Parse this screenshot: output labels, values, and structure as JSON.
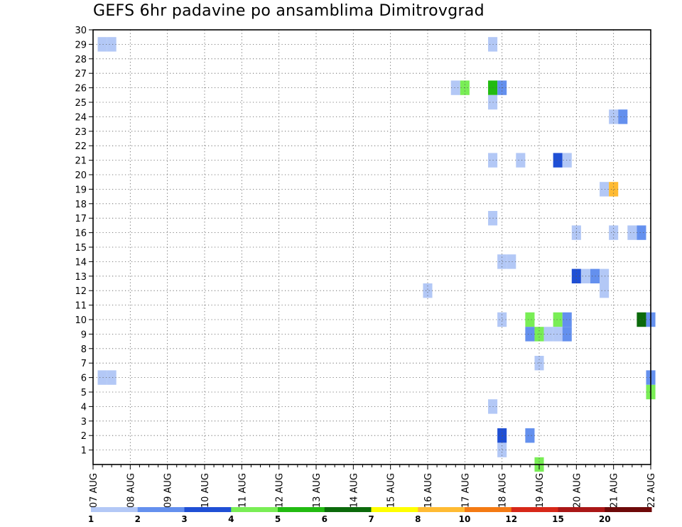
{
  "chart_data": {
    "type": "heatmap",
    "title": "GEFS 6hr padavine po ansamblima Dimitrovgrad",
    "xlabel": "",
    "ylabel": "",
    "x_ticks": [
      "07 AUG",
      "08 AUG",
      "09 AUG",
      "10 AUG",
      "11 AUG",
      "12 AUG",
      "13 AUG",
      "14 AUG",
      "15 AUG",
      "16 AUG",
      "17 AUG",
      "18 AUG",
      "19 AUG",
      "20 AUG",
      "21 AUG",
      "22 AUG"
    ],
    "x_range": [
      0,
      60
    ],
    "y_ticks": [
      1,
      2,
      3,
      4,
      5,
      6,
      7,
      8,
      9,
      10,
      11,
      12,
      13,
      14,
      15,
      16,
      17,
      18,
      19,
      20,
      21,
      22,
      23,
      24,
      25,
      26,
      27,
      28,
      29,
      30
    ],
    "y_range": [
      0,
      30
    ],
    "grid": true,
    "time_step_hours": 6,
    "legend": {
      "placement": "bottom",
      "colors": [
        "#b3c8f6",
        "#6490ee",
        "#1f4fd5",
        "#79ee55",
        "#22bb11",
        "#0b6a0b",
        "#ffff00",
        "#ffbb33",
        "#f47a13",
        "#d72819",
        "#aa1717",
        "#6e0909"
      ],
      "labels": [
        "1",
        "2",
        "3",
        "4",
        "5",
        "6",
        "7",
        "8",
        "10",
        "12",
        "15",
        "20"
      ]
    },
    "cells": [
      {
        "t": 1,
        "m": 29,
        "c": 0
      },
      {
        "t": 2,
        "m": 29,
        "c": 0
      },
      {
        "t": 1,
        "m": 6,
        "c": 0
      },
      {
        "t": 2,
        "m": 6,
        "c": 0
      },
      {
        "t": 43,
        "m": 29,
        "c": 0
      },
      {
        "t": 39,
        "m": 26,
        "c": 0
      },
      {
        "t": 40,
        "m": 26,
        "c": 3
      },
      {
        "t": 43,
        "m": 26,
        "c": 4
      },
      {
        "t": 44,
        "m": 26,
        "c": 1
      },
      {
        "t": 43,
        "m": 25,
        "c": 0
      },
      {
        "t": 56,
        "m": 24,
        "c": 0
      },
      {
        "t": 57,
        "m": 24,
        "c": 1
      },
      {
        "t": 43,
        "m": 21,
        "c": 0
      },
      {
        "t": 46,
        "m": 21,
        "c": 0
      },
      {
        "t": 50,
        "m": 21,
        "c": 2
      },
      {
        "t": 51,
        "m": 21,
        "c": 0
      },
      {
        "t": 55,
        "m": 19,
        "c": 0
      },
      {
        "t": 56,
        "m": 19,
        "c": 7
      },
      {
        "t": 43,
        "m": 17,
        "c": 0
      },
      {
        "t": 52,
        "m": 16,
        "c": 0
      },
      {
        "t": 56,
        "m": 16,
        "c": 0
      },
      {
        "t": 58,
        "m": 16,
        "c": 0
      },
      {
        "t": 59,
        "m": 16,
        "c": 1
      },
      {
        "t": 44,
        "m": 14,
        "c": 0
      },
      {
        "t": 45,
        "m": 14,
        "c": 0
      },
      {
        "t": 52,
        "m": 13,
        "c": 2
      },
      {
        "t": 53,
        "m": 13,
        "c": 0
      },
      {
        "t": 54,
        "m": 13,
        "c": 1
      },
      {
        "t": 55,
        "m": 13,
        "c": 0
      },
      {
        "t": 55,
        "m": 12,
        "c": 0
      },
      {
        "t": 36,
        "m": 12,
        "c": 0
      },
      {
        "t": 44,
        "m": 10,
        "c": 0
      },
      {
        "t": 47,
        "m": 10,
        "c": 3
      },
      {
        "t": 50,
        "m": 10,
        "c": 3
      },
      {
        "t": 51,
        "m": 10,
        "c": 1
      },
      {
        "t": 59,
        "m": 10,
        "c": 5
      },
      {
        "t": 60,
        "m": 10,
        "c": 1
      },
      {
        "t": 47,
        "m": 9,
        "c": 1
      },
      {
        "t": 48,
        "m": 9,
        "c": 3
      },
      {
        "t": 49,
        "m": 9,
        "c": 0
      },
      {
        "t": 50,
        "m": 9,
        "c": 0
      },
      {
        "t": 51,
        "m": 9,
        "c": 1
      },
      {
        "t": 48,
        "m": 7,
        "c": 0
      },
      {
        "t": 60,
        "m": 6,
        "c": 1
      },
      {
        "t": 60,
        "m": 5,
        "c": 3
      },
      {
        "t": 43,
        "m": 4,
        "c": 0
      },
      {
        "t": 44,
        "m": 2,
        "c": 2
      },
      {
        "t": 47,
        "m": 2,
        "c": 1
      },
      {
        "t": 44,
        "m": 1,
        "c": 0
      },
      {
        "t": 48,
        "m": 0,
        "c": 3
      }
    ]
  }
}
